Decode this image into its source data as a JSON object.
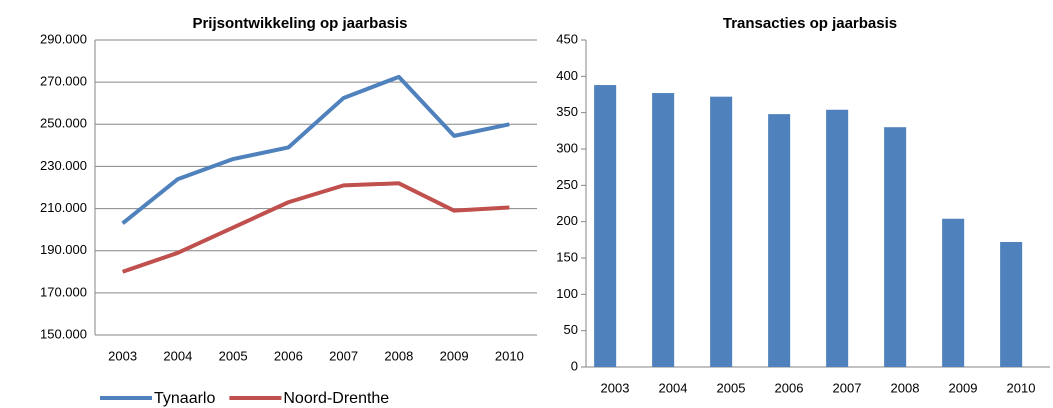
{
  "chart_data": [
    {
      "type": "line",
      "title": "Prijsontwikkeling op jaarbasis",
      "categories": [
        "2003",
        "2004",
        "2005",
        "2006",
        "2007",
        "2008",
        "2009",
        "2010"
      ],
      "series": [
        {
          "name": "Tynaarlo",
          "color": "#4f81bd",
          "values": [
            203000,
            224000,
            233500,
            239000,
            262500,
            272500,
            244500,
            250000
          ]
        },
        {
          "name": "Noord-Drenthe",
          "color": "#c0504d",
          "values": [
            180000,
            189000,
            201000,
            213000,
            221000,
            222000,
            209000,
            210500
          ]
        }
      ],
      "ylim": [
        150000,
        290000
      ],
      "yticks": [
        {
          "value": 150000,
          "label": "150.000"
        },
        {
          "value": 170000,
          "label": "170.000"
        },
        {
          "value": 190000,
          "label": "190.000"
        },
        {
          "value": 210000,
          "label": "210.000"
        },
        {
          "value": 230000,
          "label": "230.000"
        },
        {
          "value": 250000,
          "label": "250.000"
        },
        {
          "value": 270000,
          "label": "270.000"
        },
        {
          "value": 290000,
          "label": "290.000"
        }
      ],
      "grid": true,
      "legend": "bottom"
    },
    {
      "type": "bar",
      "title": "Transacties op jaarbasis",
      "categories": [
        "2003",
        "2004",
        "2005",
        "2006",
        "2007",
        "2008",
        "2009",
        "2010"
      ],
      "values": [
        388,
        377,
        372,
        348,
        354,
        330,
        204,
        172
      ],
      "color": "#4f81bd",
      "ylim": [
        0,
        450
      ],
      "yticks": [
        0,
        50,
        100,
        150,
        200,
        250,
        300,
        350,
        400,
        450
      ],
      "grid": false
    }
  ]
}
